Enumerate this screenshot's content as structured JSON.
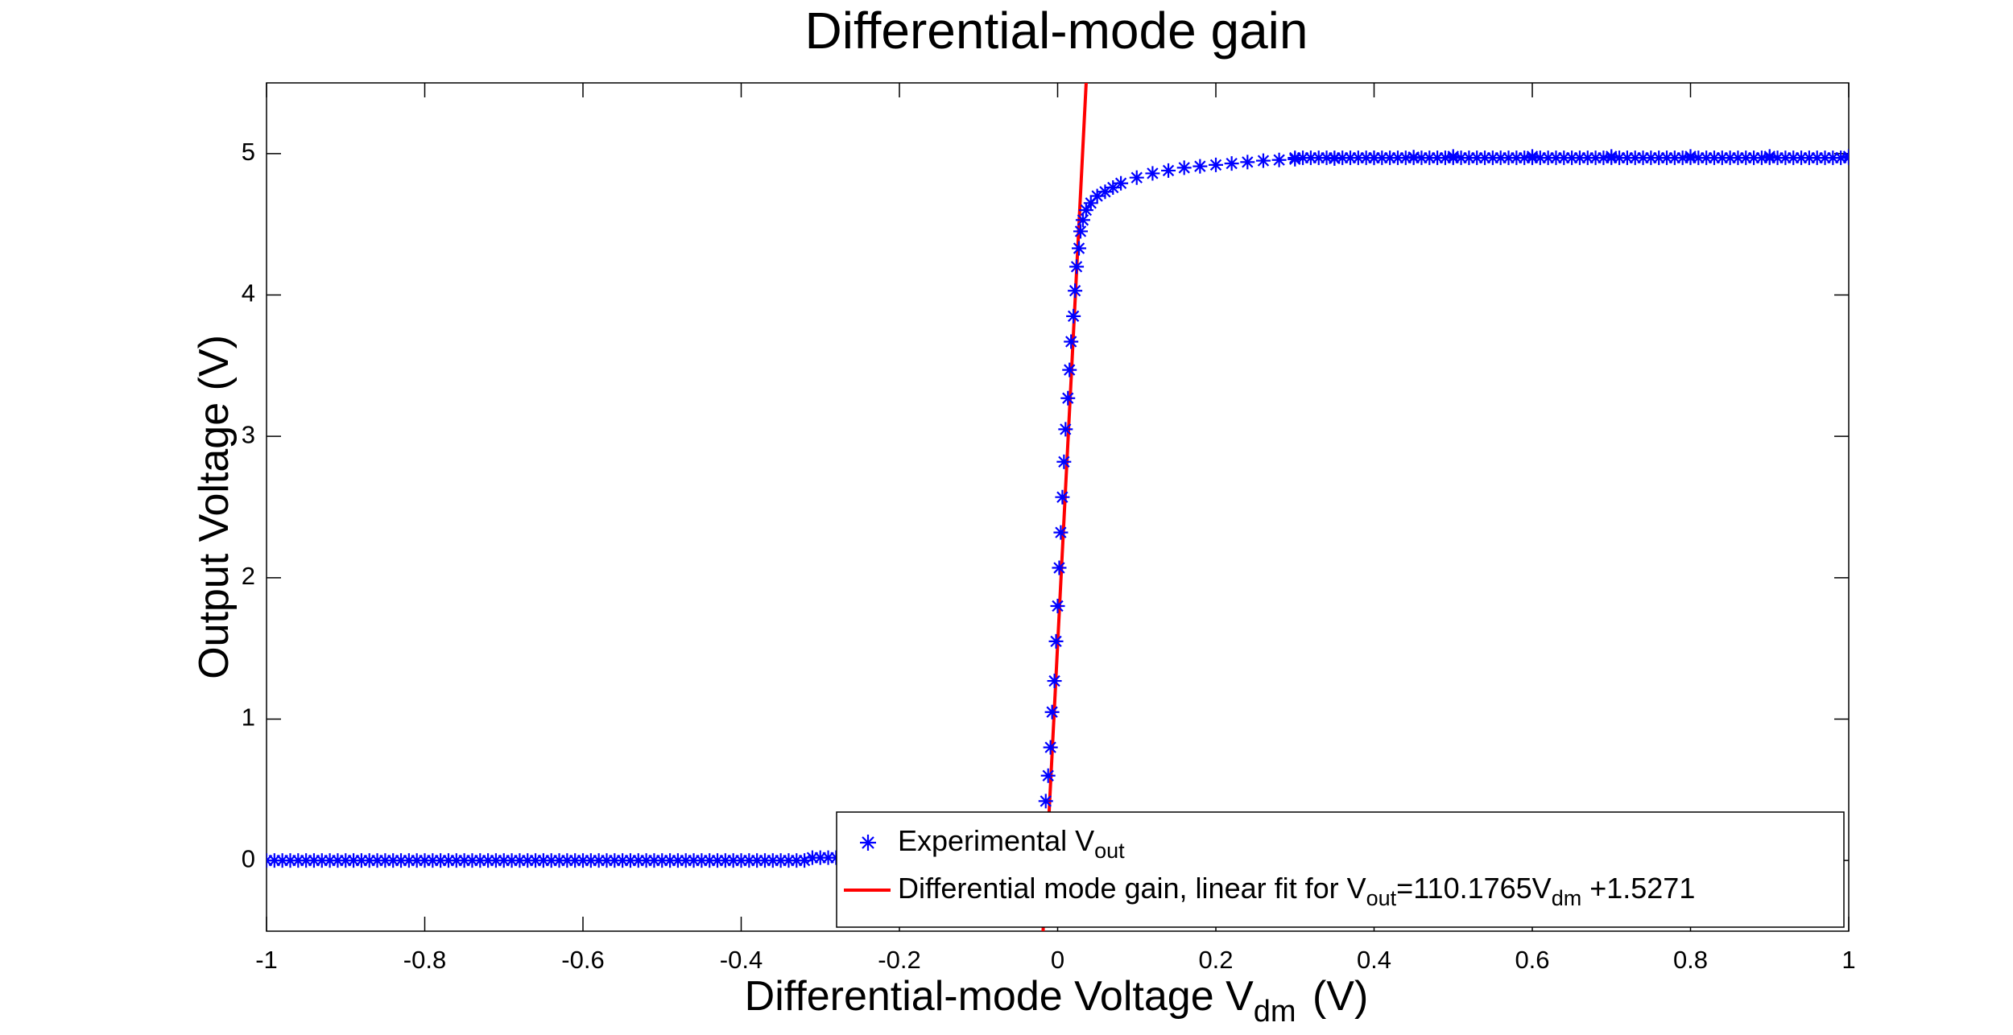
{
  "chart_data": {
    "type": "scatter",
    "title": "Differential-mode gain",
    "xlabel": {
      "main": "Differential-mode Voltage V",
      "sub": "dm",
      "unit": " (V)"
    },
    "ylabel": "Output Voltage (V)",
    "xlim": [
      -1,
      1
    ],
    "ylim": [
      -0.5,
      5.5
    ],
    "xticks": [
      -1,
      -0.8,
      -0.6,
      -0.4,
      -0.2,
      0,
      0.2,
      0.4,
      0.6,
      0.8,
      1
    ],
    "xtick_labels": [
      "-1",
      "-0.8",
      "-0.6",
      "-0.4",
      "-0.2",
      "0",
      "0.2",
      "0.4",
      "0.6",
      "0.8",
      "1"
    ],
    "yticks": [
      0,
      1,
      2,
      3,
      4,
      5
    ],
    "ytick_labels": [
      "0",
      "1",
      "2",
      "3",
      "4",
      "5"
    ],
    "grid": false,
    "legend_position": "bottom-right",
    "series": [
      {
        "name": "Experimental V_out",
        "legend_label": {
          "main": "Experimental V",
          "sub": "out"
        },
        "kind": "scatter",
        "marker": "asterisk",
        "color": "#0000ff",
        "segments": [
          {
            "from": -1.0,
            "to": -0.32,
            "step": 0.01,
            "y": 0.0
          },
          {
            "from": -0.31,
            "to": -0.2,
            "step": 0.01,
            "y": 0.02
          }
        ],
        "points": [
          [
            -0.02,
            0.2
          ],
          [
            -0.015,
            0.42
          ],
          [
            -0.012,
            0.6
          ],
          [
            -0.009,
            0.8
          ],
          [
            -0.007,
            1.05
          ],
          [
            -0.004,
            1.27
          ],
          [
            -0.002,
            1.55
          ],
          [
            0.0,
            1.8
          ],
          [
            0.002,
            2.07
          ],
          [
            0.004,
            2.32
          ],
          [
            0.006,
            2.57
          ],
          [
            0.008,
            2.82
          ],
          [
            0.01,
            3.05
          ],
          [
            0.013,
            3.27
          ],
          [
            0.015,
            3.47
          ],
          [
            0.017,
            3.67
          ],
          [
            0.02,
            3.85
          ],
          [
            0.022,
            4.03
          ],
          [
            0.024,
            4.2
          ],
          [
            0.027,
            4.33
          ],
          [
            0.029,
            4.45
          ],
          [
            0.032,
            4.53
          ],
          [
            0.036,
            4.6
          ],
          [
            0.042,
            4.65
          ],
          [
            0.05,
            4.7
          ],
          [
            0.06,
            4.73
          ],
          [
            0.07,
            4.76
          ],
          [
            0.08,
            4.79
          ],
          [
            0.1,
            4.83
          ],
          [
            0.12,
            4.86
          ],
          [
            0.14,
            4.88
          ],
          [
            0.16,
            4.9
          ],
          [
            0.18,
            4.91
          ],
          [
            0.2,
            4.92
          ],
          [
            0.22,
            4.93
          ],
          [
            0.24,
            4.94
          ],
          [
            0.26,
            4.95
          ],
          [
            0.28,
            4.955
          ],
          [
            0.3,
            4.96
          ],
          [
            0.35,
            4.965
          ],
          [
            0.4,
            4.97
          ],
          [
            0.45,
            4.975
          ],
          [
            0.5,
            4.98
          ],
          [
            0.6,
            4.98
          ],
          [
            0.7,
            4.98
          ],
          [
            0.8,
            4.98
          ],
          [
            0.9,
            4.98
          ],
          [
            1.0,
            4.98
          ]
        ],
        "tail": {
          "from": 0.3,
          "to": 1.0,
          "step": 0.01,
          "y": 4.97
        }
      },
      {
        "name": "Differential mode gain, linear fit for V_out=110.1765V_dm +1.5271",
        "legend_label": {
          "p1": "Differential mode gain, linear fit for V",
          "s1": "out",
          "p2": "=110.1765V",
          "s2": "dm",
          "p3": " +1.5271"
        },
        "kind": "line",
        "color": "#ff0000",
        "slope": 110.1765,
        "intercept": 1.5271
      }
    ]
  }
}
